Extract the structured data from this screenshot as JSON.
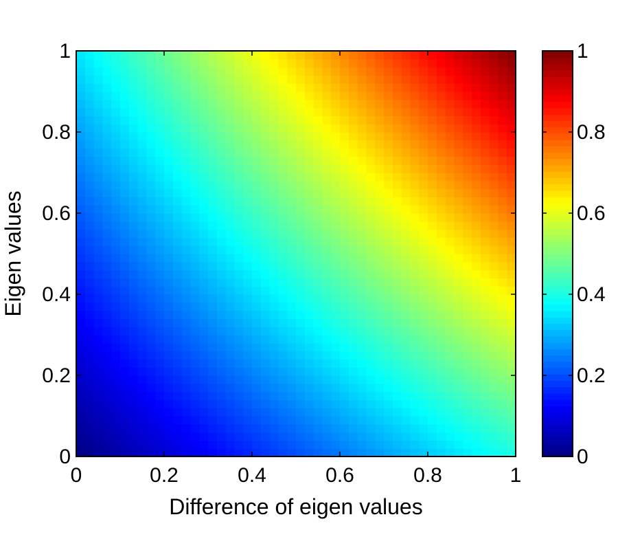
{
  "chart_data": {
    "type": "heatmap",
    "title": "",
    "xlabel": "Difference of eigen values",
    "ylabel": "Eigen values",
    "xlim": [
      0,
      1
    ],
    "ylim": [
      0,
      1
    ],
    "xticks": [
      "0",
      "0.2",
      "0.4",
      "0.6",
      "0.8",
      "1"
    ],
    "yticks": [
      "0",
      "0.2",
      "0.4",
      "0.6",
      "0.8",
      "1"
    ],
    "colorbar": {
      "colormap": "jet",
      "range": [
        0,
        1
      ],
      "ticks": [
        "0",
        "0.2",
        "0.4",
        "0.6",
        "0.8",
        "1"
      ]
    },
    "grid": false,
    "corner_values": {
      "x0_y0": 0.0,
      "x1_y0": 0.4,
      "x0_y1": 0.35,
      "x1_y1": 1.0
    }
  }
}
